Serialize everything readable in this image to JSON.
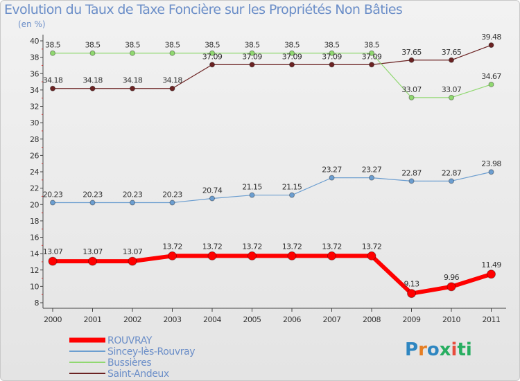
{
  "title": "Evolution du Taux de Taxe Foncière sur les Propriétés Non Bâties",
  "unit": "(en %)",
  "logo": {
    "text": "Proxiti",
    "letters": [
      "P",
      "r",
      "o",
      "x",
      "i",
      "t",
      "i"
    ],
    "colors": [
      "#2e86c1",
      "#e67e22",
      "#2e86c1",
      "#27ae60",
      "#e74c3c",
      "#27ae60",
      "#27ae60"
    ]
  },
  "chart_data": {
    "type": "line",
    "x": [
      "2000",
      "2001",
      "2002",
      "2003",
      "2004",
      "2005",
      "2006",
      "2007",
      "2008",
      "2009",
      "2010",
      "2011"
    ],
    "ylim": [
      8,
      40
    ],
    "yticks": [
      8,
      10,
      12,
      14,
      16,
      18,
      20,
      22,
      24,
      26,
      28,
      30,
      32,
      34,
      36,
      38,
      40
    ],
    "grid": false,
    "legend_position": "bottom-left",
    "series": [
      {
        "name": "Saint-Andeux",
        "color": "#6b2222",
        "values": [
          34.18,
          34.18,
          34.18,
          34.18,
          37.09,
          37.09,
          37.09,
          37.09,
          37.09,
          37.65,
          37.65,
          39.48
        ],
        "labels": [
          "34.18",
          "34.18",
          "34.18",
          "34.18",
          "37.09",
          "37.09",
          "37.09",
          "37.09",
          "37.09",
          "37.65",
          "37.65",
          "39.48"
        ]
      },
      {
        "name": "Bussières",
        "color": "#90d870",
        "values": [
          38.5,
          38.5,
          38.5,
          38.5,
          38.5,
          38.5,
          38.5,
          38.5,
          38.5,
          33.07,
          33.07,
          34.67
        ],
        "labels": [
          "38.5",
          "38.5",
          "38.5",
          "38.5",
          "38.5",
          "38.5",
          "38.5",
          "38.5",
          "38.5",
          "33.07",
          "33.07",
          "34.67"
        ]
      },
      {
        "name": "Sincey-lès-Rouvray",
        "color": "#6c9ed0",
        "values": [
          20.23,
          20.23,
          20.23,
          20.23,
          20.74,
          21.15,
          21.15,
          23.27,
          23.27,
          22.87,
          22.87,
          23.98
        ],
        "labels": [
          "20.23",
          "20.23",
          "20.23",
          "20.23",
          "20.74",
          "21.15",
          "21.15",
          "23.27",
          "23.27",
          "22.87",
          "22.87",
          "23.98"
        ]
      },
      {
        "name": "ROUVRAY",
        "color": "#ff0000",
        "values": [
          13.07,
          13.07,
          13.07,
          13.72,
          13.72,
          13.72,
          13.72,
          13.72,
          13.72,
          9.13,
          9.96,
          11.49
        ],
        "labels": [
          "13.07",
          "13.07",
          "13.07",
          "13.72",
          "13.72",
          "13.72",
          "13.72",
          "13.72",
          "13.72",
          "9.13",
          "9.96",
          "11.49"
        ]
      }
    ],
    "legend": [
      "ROUVRAY",
      "Sincey-lès-Rouvray",
      "Bussières",
      "Saint-Andeux"
    ]
  }
}
